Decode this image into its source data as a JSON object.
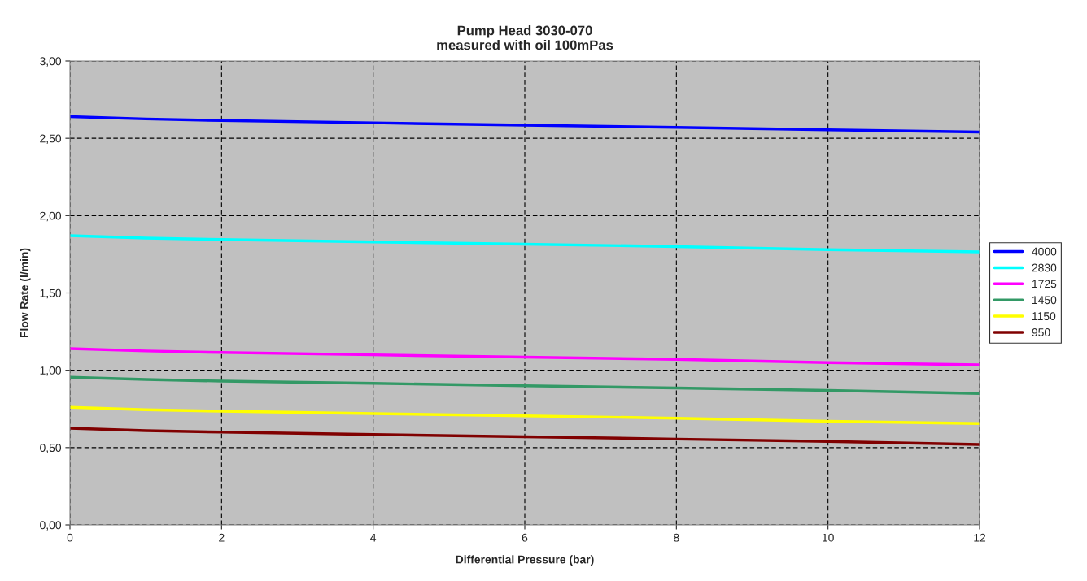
{
  "chart_data": {
    "type": "line",
    "title": "Pump Head 3030-070\nmeasured with oil 100mPas",
    "xlabel": "Differential Pressure (bar)",
    "ylabel": "Flow Rate (l/min)",
    "x": [
      0,
      1,
      2,
      4,
      6,
      8,
      10,
      12
    ],
    "series": [
      {
        "name": "4000",
        "color": "#0000ff",
        "values": [
          2.64,
          2.625,
          2.615,
          2.6,
          2.585,
          2.57,
          2.555,
          2.54
        ]
      },
      {
        "name": "2830",
        "color": "#00ffff",
        "values": [
          1.87,
          1.855,
          1.845,
          1.83,
          1.815,
          1.8,
          1.78,
          1.765
        ]
      },
      {
        "name": "1725",
        "color": "#ff00ff",
        "values": [
          1.14,
          1.125,
          1.115,
          1.1,
          1.085,
          1.07,
          1.05,
          1.035
        ]
      },
      {
        "name": "1450",
        "color": "#339966",
        "values": [
          0.955,
          0.94,
          0.93,
          0.915,
          0.9,
          0.885,
          0.87,
          0.85
        ]
      },
      {
        "name": "1150",
        "color": "#ffff00",
        "values": [
          0.76,
          0.745,
          0.735,
          0.72,
          0.705,
          0.69,
          0.67,
          0.655
        ]
      },
      {
        "name": "950",
        "color": "#800000",
        "values": [
          0.625,
          0.61,
          0.6,
          0.585,
          0.57,
          0.555,
          0.54,
          0.52
        ]
      }
    ],
    "xlim": [
      0,
      12
    ],
    "xticks": [
      0,
      2,
      4,
      6,
      8,
      10,
      12
    ],
    "ylim": [
      0,
      3
    ],
    "yticks": [
      {
        "value": 0,
        "label": "0,00"
      },
      {
        "value": 0.5,
        "label": "0,50"
      },
      {
        "value": 1,
        "label": "1,00"
      },
      {
        "value": 1.5,
        "label": "1,50"
      },
      {
        "value": 2,
        "label": "2,00"
      },
      {
        "value": 2.5,
        "label": "2,50"
      },
      {
        "value": 3,
        "label": "3,00"
      }
    ],
    "grid": true,
    "legend": "right",
    "line_style": "solid",
    "marker": "none"
  }
}
